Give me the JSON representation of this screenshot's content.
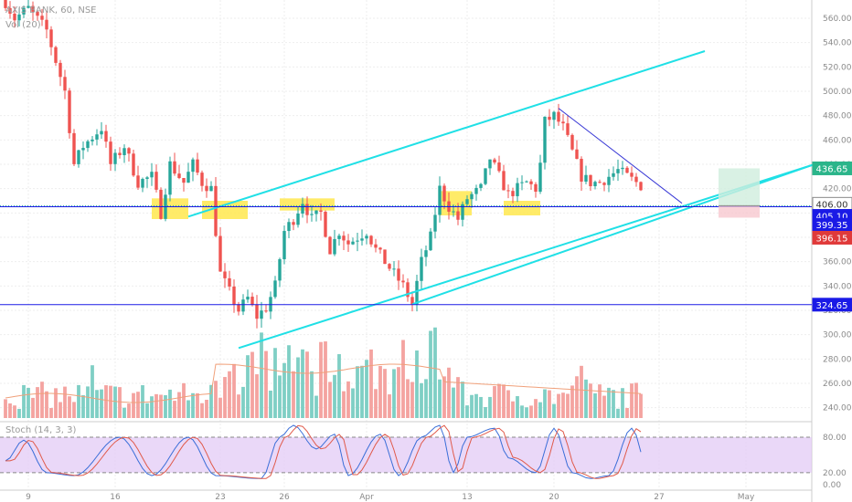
{
  "chart_data": {
    "type": "candlestick",
    "symbol_legend": "AXIS BANK, 60, NSE",
    "volume_legend": "Vol (20)",
    "stoch_legend": "Stoch (14, 3, 3)",
    "price_axis": {
      "min": 230,
      "max": 575,
      "ticks": [
        240,
        260,
        280,
        300,
        320,
        340,
        360,
        380,
        400,
        420,
        440,
        460,
        480,
        500,
        520,
        540,
        560
      ]
    },
    "stoch_axis": {
      "min": -8,
      "max": 100,
      "ticks": [
        "80.00",
        "20.00",
        "0.00"
      ],
      "tick_values": [
        80,
        20,
        0
      ],
      "upper_band": 80,
      "lower_band": 20
    },
    "x_ticks": [
      "9",
      "16",
      "23",
      "26",
      "Apr",
      "13",
      "20",
      "27",
      "May"
    ],
    "bars_count": 140,
    "price_path": [
      [
        0,
        580
      ],
      [
        3,
        560
      ],
      [
        6,
        568
      ],
      [
        10,
        550
      ],
      [
        14,
        500
      ],
      [
        16,
        440
      ],
      [
        18,
        455
      ],
      [
        22,
        470
      ],
      [
        24,
        440
      ],
      [
        27,
        455
      ],
      [
        30,
        425
      ],
      [
        33,
        430
      ],
      [
        35,
        400
      ],
      [
        37,
        440
      ],
      [
        40,
        425
      ],
      [
        42,
        440
      ],
      [
        44,
        425
      ],
      [
        46,
        420
      ],
      [
        48,
        350
      ],
      [
        50,
        335
      ],
      [
        52,
        320
      ],
      [
        54,
        330
      ],
      [
        56,
        315
      ],
      [
        58,
        322
      ],
      [
        60,
        340
      ],
      [
        62,
        385
      ],
      [
        64,
        395
      ],
      [
        66,
        410
      ],
      [
        68,
        395
      ],
      [
        70,
        400
      ],
      [
        72,
        370
      ],
      [
        74,
        385
      ],
      [
        76,
        375
      ],
      [
        78,
        380
      ],
      [
        80,
        385
      ],
      [
        82,
        370
      ],
      [
        84,
        360
      ],
      [
        86,
        350
      ],
      [
        88,
        340
      ],
      [
        90,
        325
      ],
      [
        92,
        360
      ],
      [
        94,
        380
      ],
      [
        96,
        420
      ],
      [
        98,
        405
      ],
      [
        100,
        395
      ],
      [
        102,
        412
      ],
      [
        105,
        420
      ],
      [
        107,
        445
      ],
      [
        109,
        430
      ],
      [
        111,
        415
      ],
      [
        113,
        420
      ],
      [
        115,
        425
      ],
      [
        117,
        420
      ],
      [
        118,
        440
      ],
      [
        119,
        475
      ],
      [
        121,
        480
      ],
      [
        123,
        470
      ],
      [
        125,
        450
      ],
      [
        127,
        430
      ],
      [
        129,
        425
      ],
      [
        131,
        425
      ],
      [
        133,
        430
      ],
      [
        135,
        435
      ],
      [
        137,
        430
      ],
      [
        139,
        425
      ],
      [
        141,
        420
      ],
      [
        142,
        410
      ],
      [
        143,
        405
      ],
      [
        144,
        403
      ]
    ],
    "horizontal_levels": [
      {
        "name": "resistance-support",
        "value": 405.1,
        "color": "#1a1ae6"
      },
      {
        "name": "support-low",
        "value": 324.65,
        "color": "#1a1ae6"
      }
    ],
    "channel": {
      "upper": [
        [
          40,
          397
        ],
        [
          153,
          533
        ]
      ],
      "lower": [
        [
          51,
          289
        ],
        [
          177,
          440
        ]
      ],
      "middle_low": [
        [
          89,
          325
        ],
        [
          177,
          440
        ]
      ],
      "color": "#20e0e6"
    },
    "down_trendline": {
      "points": [
        [
          121,
          486
        ],
        [
          148,
          408
        ]
      ],
      "color": "#3a3ad6"
    },
    "zones": [
      {
        "x": [
          32,
          40
        ],
        "y": [
          395,
          412
        ]
      },
      {
        "x": [
          43,
          53
        ],
        "y": [
          395,
          410
        ]
      },
      {
        "x": [
          60,
          72
        ],
        "y": [
          402,
          412
        ]
      },
      {
        "x": [
          95,
          102
        ],
        "y": [
          398,
          418
        ]
      },
      {
        "x": [
          109,
          117
        ],
        "y": [
          398,
          410
        ]
      }
    ],
    "position_box": {
      "x": [
        156,
        165
      ],
      "target": 436.65,
      "entry": 406.0,
      "stop": 396.15
    },
    "price_labels": [
      {
        "label": "436.65",
        "value": 436.65,
        "color": "#2bb58a"
      },
      {
        "label": "406.00",
        "value": 406.0,
        "color": "#ffffff",
        "text_color": "#333333"
      },
      {
        "label": "405.10",
        "value": 405.1,
        "color": "#1a1ae6"
      },
      {
        "label": "399.35",
        "value": 399.35,
        "color": "#1a1ae6"
      },
      {
        "label": "396.15",
        "value": 396.15,
        "color": "#e03a3a"
      },
      {
        "label": "324.65",
        "value": 324.65,
        "color": "#1a1ae6"
      }
    ],
    "colors": {
      "up": "#26a69a",
      "down": "#ef5350",
      "volume_up": "#7fcfc5",
      "volume_down": "#f4a3a0",
      "stoch_fill": "#e1c7f5",
      "stoch_k": "#3a6ed8",
      "stoch_d": "#e05a4a",
      "zone": "#ffe84d"
    }
  }
}
